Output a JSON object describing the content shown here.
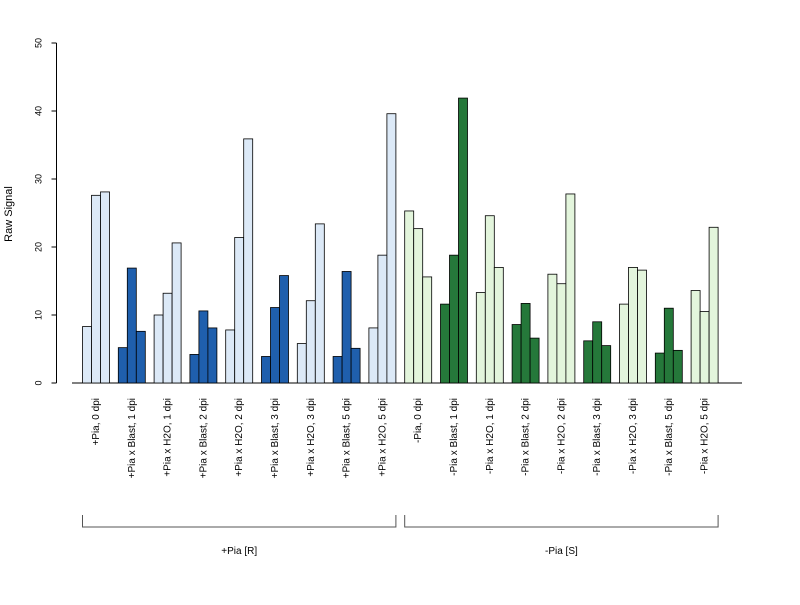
{
  "chart_data": {
    "type": "bar",
    "ylabel": "Raw Signal",
    "ylim": [
      0,
      50
    ],
    "yticks": [
      0,
      10,
      20,
      30,
      40,
      50
    ],
    "categories": [
      "+Pia, 0 dpi",
      "+Pia x Blast, 1 dpi",
      "+Pia x H2O, 1 dpi",
      "+Pia x Blast, 2 dpi",
      "+Pia x H2O, 2 dpi",
      "+Pia x Blast, 3 dpi",
      "+Pia x H2O, 3 dpi",
      "+Pia x Blast, 5 dpi",
      "+Pia x H2O, 5 dpi",
      "-Pia, 0 dpi",
      "-Pia x Blast, 1 dpi",
      "-Pia x H2O, 1 dpi",
      "-Pia x Blast, 2 dpi",
      "-Pia x H2O, 2 dpi",
      "-Pia x Blast, 3 dpi",
      "-Pia x H2O, 3 dpi",
      "-Pia x Blast, 5 dpi",
      "-Pia x H2O, 5 dpi"
    ],
    "values": [
      [
        8.3,
        27.6,
        28.1
      ],
      [
        5.2,
        16.9,
        7.6
      ],
      [
        10.0,
        13.2,
        20.6
      ],
      [
        4.2,
        10.6,
        8.1
      ],
      [
        7.8,
        21.4,
        35.9
      ],
      [
        3.9,
        11.1,
        15.8
      ],
      [
        5.8,
        12.1,
        23.4
      ],
      [
        3.9,
        16.4,
        5.1
      ],
      [
        8.1,
        18.8,
        39.6
      ],
      [
        25.3,
        22.7,
        15.6
      ],
      [
        11.6,
        18.8,
        41.9
      ],
      [
        13.3,
        24.6,
        17.0
      ],
      [
        8.6,
        11.7,
        6.6
      ],
      [
        16.0,
        14.6,
        27.8
      ],
      [
        6.2,
        9.0,
        5.5
      ],
      [
        11.6,
        17.0,
        16.6
      ],
      [
        4.4,
        11.0,
        4.8
      ],
      [
        13.6,
        10.5,
        22.9
      ]
    ],
    "bar_colors": [
      "#dce9f7",
      "#1f5fad",
      "#dce9f7",
      "#1f5fad",
      "#dce9f7",
      "#1f5fad",
      "#dce9f7",
      "#1f5fad",
      "#dce9f7",
      "#e3f5dc",
      "#25783a",
      "#e3f5dc",
      "#25783a",
      "#e3f5dc",
      "#25783a",
      "#e3f5dc",
      "#25783a",
      "#e3f5dc"
    ],
    "groups": [
      {
        "label": "+Pia [R]",
        "from": 0,
        "to": 8
      },
      {
        "label": "-Pia [S]",
        "from": 9,
        "to": 17
      }
    ],
    "grid": false
  }
}
